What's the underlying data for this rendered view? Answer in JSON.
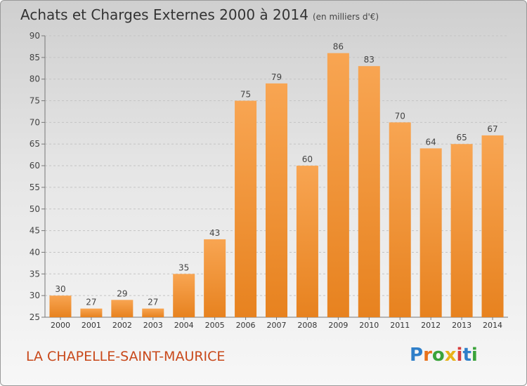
{
  "chart_data": {
    "type": "bar",
    "title": "Achats et Charges Externes 2000 à 2014",
    "unit_note": "(en milliers d'€)",
    "categories": [
      "2000",
      "2001",
      "2002",
      "2003",
      "2004",
      "2005",
      "2006",
      "2007",
      "2008",
      "2009",
      "2010",
      "2011",
      "2012",
      "2013",
      "2014"
    ],
    "values": [
      30,
      27,
      29,
      27,
      35,
      43,
      75,
      79,
      60,
      86,
      83,
      70,
      64,
      65,
      67
    ],
    "ylim": [
      25,
      90
    ],
    "yticks": [
      25,
      30,
      35,
      40,
      45,
      50,
      55,
      60,
      65,
      70,
      75,
      80,
      85,
      90
    ],
    "grid": true,
    "bar_color": "#e7821f",
    "bar_color_light": "#f8a552"
  },
  "place": "LA CHAPELLE-SAINT-MAURICE",
  "logo": {
    "text": "Proxiti",
    "letters": [
      "P",
      "r",
      "o",
      "x",
      "i",
      "t",
      "i"
    ],
    "colors": [
      "#2f7fc9",
      "#e8711a",
      "#3aa33a",
      "#e8b219",
      "#d83c3c",
      "#2f7fc9",
      "#3aa33a"
    ]
  }
}
